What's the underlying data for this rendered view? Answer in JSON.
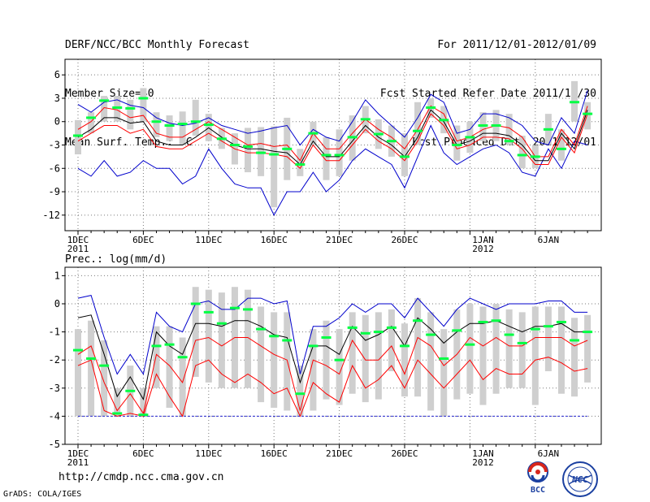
{
  "header": {
    "left": [
      "DERF/NCC/BCC Monthly Forecast",
      "Member Size=40",
      "Mean Surf. Temp.: °C"
    ],
    "right": [
      "For 2011/12/01-2012/01/09",
      "Fcst Started Refer Date 2011/11/30",
      "Fcst Produced Date 2011/12/01"
    ]
  },
  "panel2_label": "Prec.: log(mm/d)",
  "footer": {
    "url": "http://cmdp.ncc.cma.gov.cn",
    "credit": "GrADS: COLA/IGES"
  },
  "logos": {
    "bcc": "BCC",
    "ncc": "NCC"
  },
  "colors": {
    "grid": "#7a7a7a",
    "box": "#cfcfcf",
    "mean": "#00ff44",
    "median": "#000000",
    "inner": "#ff0000",
    "outer": "#0000cc",
    "baseline": "#2a2ad0"
  },
  "chart_data": [
    {
      "type": "line",
      "title": "Mean Surf. Temp.: °C",
      "x": [
        1,
        2,
        3,
        4,
        5,
        6,
        7,
        8,
        9,
        10,
        11,
        12,
        13,
        14,
        15,
        16,
        17,
        18,
        19,
        20,
        21,
        22,
        23,
        24,
        25,
        26,
        27,
        28,
        29,
        30,
        31,
        32,
        33,
        34,
        35,
        36,
        37,
        38,
        39,
        40
      ],
      "x_ticks": [
        {
          "day": 1,
          "label": "1DEC",
          "sub": "2011"
        },
        {
          "day": 6,
          "label": "6DEC",
          "sub": ""
        },
        {
          "day": 11,
          "label": "11DEC",
          "sub": ""
        },
        {
          "day": 16,
          "label": "16DEC",
          "sub": ""
        },
        {
          "day": 21,
          "label": "21DEC",
          "sub": ""
        },
        {
          "day": 26,
          "label": "26DEC",
          "sub": ""
        },
        {
          "day": 32,
          "label": "1JAN",
          "sub": "2012"
        },
        {
          "day": 37,
          "label": "6JAN",
          "sub": ""
        }
      ],
      "ylim": [
        -14,
        8
      ],
      "y_ticks": [
        -12,
        -9,
        -6,
        -3,
        0,
        3,
        6
      ],
      "series": [
        {
          "name": "max",
          "values": [
            2.2,
            1.2,
            2.5,
            2.8,
            2.1,
            1.8,
            0.5,
            -0.2,
            -0.5,
            -0.2,
            0.5,
            -0.5,
            -1.0,
            -1.5,
            -1.2,
            -0.8,
            -0.5,
            -3.0,
            -1.0,
            -2.0,
            -2.5,
            0.0,
            2.8,
            1.0,
            -0.5,
            -2.0,
            0.5,
            3.5,
            2.5,
            -1.5,
            -1.0,
            1.0,
            1.0,
            0.5,
            -0.5,
            -2.5,
            -3.0,
            0.5,
            -1.5,
            4.0
          ]
        },
        {
          "name": "upper",
          "values": [
            -1.0,
            0.0,
            1.8,
            1.5,
            0.5,
            0.8,
            -1.5,
            -2.0,
            -2.0,
            -1.0,
            0.0,
            -1.0,
            -2.0,
            -3.0,
            -2.8,
            -3.2,
            -3.0,
            -5.0,
            -1.5,
            -3.5,
            -3.5,
            -1.5,
            0.3,
            -1.0,
            -2.0,
            -3.5,
            -1.0,
            2.0,
            1.0,
            -2.5,
            -2.0,
            -1.0,
            -0.5,
            -0.8,
            -2.0,
            -4.5,
            -4.5,
            -1.0,
            -3.0,
            2.0
          ]
        },
        {
          "name": "median",
          "values": [
            -2.0,
            -1.0,
            0.5,
            0.5,
            -0.2,
            0.0,
            -2.5,
            -3.0,
            -3.0,
            -2.0,
            -0.8,
            -2.0,
            -3.0,
            -3.5,
            -3.5,
            -3.8,
            -4.0,
            -5.5,
            -2.5,
            -4.5,
            -4.5,
            -2.5,
            -0.5,
            -2.0,
            -3.0,
            -4.5,
            -2.0,
            1.5,
            0.0,
            -3.0,
            -2.5,
            -1.5,
            -1.5,
            -1.8,
            -3.0,
            -5.0,
            -5.0,
            -1.5,
            -3.5,
            1.5
          ]
        },
        {
          "name": "lower",
          "values": [
            -2.5,
            -1.5,
            -0.5,
            -0.5,
            -1.5,
            -1.0,
            -3.2,
            -3.5,
            -3.5,
            -2.5,
            -1.5,
            -2.5,
            -3.5,
            -4.0,
            -4.0,
            -4.2,
            -4.5,
            -6.0,
            -3.0,
            -5.0,
            -5.0,
            -3.0,
            -1.0,
            -2.5,
            -3.5,
            -5.0,
            -2.5,
            1.0,
            -0.5,
            -3.5,
            -3.0,
            -2.0,
            -2.0,
            -2.2,
            -3.5,
            -5.5,
            -5.5,
            -2.0,
            -4.0,
            1.0
          ]
        },
        {
          "name": "min",
          "values": [
            -6.0,
            -7.0,
            -5.0,
            -7.0,
            -6.5,
            -5.0,
            -6.0,
            -6.0,
            -8.0,
            -7.0,
            -3.5,
            -6.0,
            -8.0,
            -8.5,
            -8.5,
            -12.0,
            -9.0,
            -9.0,
            -6.5,
            -9.0,
            -7.5,
            -5.0,
            -3.5,
            -4.5,
            -5.5,
            -8.5,
            -4.5,
            -0.5,
            -4.0,
            -5.5,
            -4.5,
            -3.5,
            -3.0,
            -4.0,
            -6.5,
            -7.0,
            -3.5,
            -6.0,
            -2.5,
            -3.0
          ]
        },
        {
          "name": "ensemble_mean",
          "values": [
            -1.8,
            0.5,
            2.7,
            1.8,
            1.7,
            3.0,
            0.0,
            -0.5,
            -0.3,
            0.0,
            -0.4,
            -2.2,
            -3.0,
            -3.2,
            -4.0,
            -4.2,
            -3.5,
            -5.5,
            -1.5,
            -4.3,
            -4.3,
            -2.0,
            0.3,
            -1.6,
            -2.5,
            -4.5,
            -1.2,
            1.8,
            0.2,
            -3.0,
            -2.0,
            -0.5,
            -0.5,
            -2.5,
            -4.3,
            -4.5,
            -1.0,
            -3.5,
            2.5,
            1.0
          ]
        },
        {
          "name": "box_top",
          "values": [
            0.2,
            1.2,
            3.3,
            3.3,
            2.8,
            4.3,
            1.2,
            0.8,
            1.3,
            2.8,
            1.0,
            -0.8,
            -1.5,
            -0.8,
            -0.7,
            -0.6,
            0.5,
            -3.5,
            0.0,
            -2.0,
            -1.0,
            0.8,
            2.0,
            0.3,
            -0.5,
            -1.5,
            2.5,
            3.0,
            2.0,
            -0.5,
            0.0,
            1.2,
            1.5,
            1.0,
            -1.8,
            -3.0,
            1.0,
            -1.0,
            5.2,
            2.5
          ]
        },
        {
          "name": "box_bottom",
          "values": [
            -4.2,
            -1.5,
            0.0,
            0.0,
            -1.0,
            0.0,
            -2.0,
            -2.5,
            -3.0,
            -1.8,
            -2.5,
            -3.5,
            -5.5,
            -6.5,
            -7.0,
            -11.0,
            -7.5,
            -7.0,
            -3.0,
            -7.5,
            -7.0,
            -5.0,
            -1.5,
            -3.5,
            -4.5,
            -7.0,
            -3.0,
            0.5,
            -1.5,
            -5.0,
            -4.0,
            -2.5,
            -2.5,
            -3.0,
            -6.0,
            -6.0,
            -3.0,
            -5.0,
            0.0,
            -1.0
          ]
        }
      ]
    },
    {
      "type": "line",
      "title": "Prec.: log(mm/d)",
      "x": [
        1,
        2,
        3,
        4,
        5,
        6,
        7,
        8,
        9,
        10,
        11,
        12,
        13,
        14,
        15,
        16,
        17,
        18,
        19,
        20,
        21,
        22,
        23,
        24,
        25,
        26,
        27,
        28,
        29,
        30,
        31,
        32,
        33,
        34,
        35,
        36,
        37,
        38,
        39,
        40
      ],
      "x_ticks": [
        {
          "day": 1,
          "label": "1DEC",
          "sub": "2011"
        },
        {
          "day": 6,
          "label": "6DEC",
          "sub": ""
        },
        {
          "day": 11,
          "label": "11DEC",
          "sub": ""
        },
        {
          "day": 16,
          "label": "16DEC",
          "sub": ""
        },
        {
          "day": 21,
          "label": "21DEC",
          "sub": ""
        },
        {
          "day": 26,
          "label": "26DEC",
          "sub": ""
        },
        {
          "day": 32,
          "label": "1JAN",
          "sub": "2012"
        },
        {
          "day": 37,
          "label": "6JAN",
          "sub": ""
        }
      ],
      "ylim": [
        -5,
        1.3
      ],
      "y_ticks": [
        -5,
        -4,
        -3,
        -2,
        -1,
        0,
        1
      ],
      "series": [
        {
          "name": "max",
          "values": [
            0.2,
            0.3,
            -1.2,
            -2.5,
            -1.8,
            -2.5,
            -0.3,
            -0.8,
            -1.0,
            0.0,
            0.1,
            -0.2,
            -0.2,
            0.2,
            0.2,
            0.0,
            0.1,
            -2.5,
            -0.8,
            -0.8,
            -0.5,
            0.0,
            -0.3,
            0.0,
            0.0,
            -0.5,
            0.2,
            -0.3,
            -0.8,
            -0.2,
            0.2,
            0.0,
            -0.2,
            0.0,
            0.0,
            0.0,
            0.1,
            0.1,
            -0.3,
            -0.3
          ]
        },
        {
          "name": "median",
          "values": [
            -0.5,
            -0.4,
            -1.8,
            -3.3,
            -2.6,
            -3.4,
            -1.0,
            -1.5,
            -1.8,
            -0.7,
            -0.7,
            -0.8,
            -0.6,
            -0.6,
            -0.8,
            -1.1,
            -1.2,
            -2.8,
            -1.5,
            -1.5,
            -1.8,
            -0.8,
            -1.3,
            -1.1,
            -0.8,
            -1.5,
            -0.5,
            -0.9,
            -1.4,
            -1.0,
            -0.7,
            -0.7,
            -0.6,
            -0.8,
            -1.0,
            -0.8,
            -0.8,
            -0.7,
            -1.0,
            -1.0
          ]
        },
        {
          "name": "upper",
          "values": [
            -1.8,
            -1.5,
            -2.8,
            -3.8,
            -3.2,
            -3.9,
            -1.8,
            -2.2,
            -2.8,
            -1.3,
            -1.2,
            -1.5,
            -1.2,
            -1.2,
            -1.5,
            -1.8,
            -2.0,
            -3.8,
            -2.0,
            -2.2,
            -2.5,
            -1.3,
            -2.0,
            -2.0,
            -1.5,
            -2.5,
            -1.2,
            -1.5,
            -2.2,
            -1.8,
            -1.2,
            -1.5,
            -1.2,
            -1.5,
            -1.5,
            -1.2,
            -1.2,
            -1.2,
            -1.5,
            -1.3
          ]
        },
        {
          "name": "lower",
          "values": [
            -2.2,
            -2.0,
            -3.8,
            -4.0,
            -3.9,
            -4.0,
            -2.5,
            -3.3,
            -4.0,
            -2.2,
            -2.0,
            -2.5,
            -2.8,
            -2.5,
            -2.8,
            -3.2,
            -3.0,
            -4.0,
            -2.8,
            -3.2,
            -3.5,
            -2.2,
            -3.0,
            -2.7,
            -2.2,
            -3.0,
            -2.0,
            -2.5,
            -3.0,
            -2.5,
            -2.0,
            -2.7,
            -2.3,
            -2.5,
            -2.5,
            -2.0,
            -1.9,
            -2.1,
            -2.4,
            -2.3
          ]
        },
        {
          "name": "ensemble_mean",
          "values": [
            -1.65,
            -1.95,
            -2.2,
            -3.9,
            -3.1,
            -3.95,
            -1.5,
            -1.45,
            -1.9,
            0.0,
            -0.3,
            -0.7,
            -0.15,
            -0.2,
            -0.9,
            -1.15,
            -1.3,
            -3.2,
            -1.5,
            -1.2,
            -2.0,
            -0.85,
            -1.05,
            -1.0,
            -0.85,
            -1.5,
            -0.6,
            -1.1,
            -1.95,
            -0.95,
            -1.45,
            -0.65,
            -0.6,
            -1.1,
            -1.4,
            -0.9,
            -0.8,
            -0.65,
            -1.3,
            -1.0
          ]
        },
        {
          "name": "box_top",
          "values": [
            -0.9,
            -0.6,
            -1.3,
            -3.0,
            -2.2,
            -3.0,
            -0.8,
            -0.8,
            -1.2,
            0.6,
            0.5,
            0.4,
            0.6,
            0.5,
            -0.1,
            -0.3,
            -0.3,
            -2.2,
            -0.9,
            -0.6,
            -0.9,
            -0.3,
            -0.4,
            -0.3,
            -0.2,
            -0.7,
            0.2,
            -0.3,
            -0.9,
            -0.2,
            0.0,
            -0.1,
            0.0,
            -0.2,
            -0.3,
            -0.1,
            -0.1,
            -0.1,
            -0.5,
            -0.4
          ]
        },
        {
          "name": "box_bottom",
          "values": [
            -4.0,
            -4.0,
            -4.0,
            -4.0,
            -4.0,
            -4.0,
            -3.0,
            -3.7,
            -4.0,
            -2.6,
            -2.8,
            -3.0,
            -3.0,
            -3.0,
            -3.5,
            -3.7,
            -3.8,
            -4.0,
            -3.8,
            -3.4,
            -3.6,
            -3.2,
            -3.5,
            -3.4,
            -2.4,
            -3.3,
            -3.3,
            -3.8,
            -4.0,
            -3.4,
            -3.2,
            -3.6,
            -3.2,
            -3.0,
            -3.0,
            -3.6,
            -2.4,
            -3.2,
            -3.3,
            -2.8
          ]
        }
      ],
      "baseline": -4.0
    }
  ]
}
